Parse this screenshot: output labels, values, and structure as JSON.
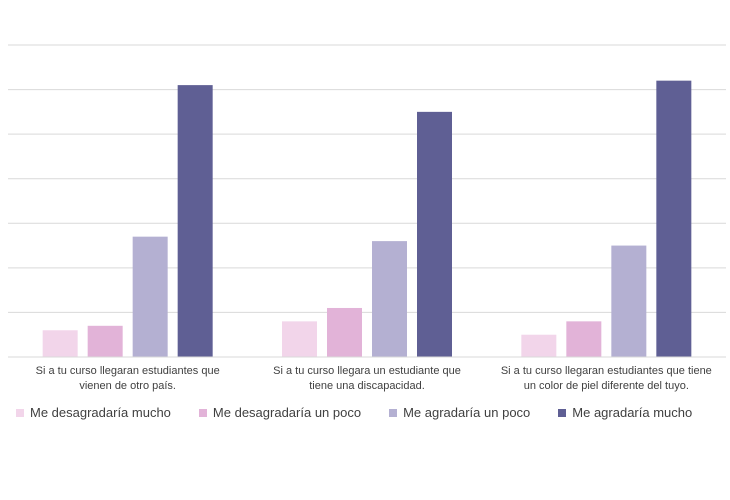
{
  "chart_data": {
    "type": "bar",
    "categories": [
      "Si a tu curso llegaran estudiantes que vienen de otro país.",
      "Si a tu curso llegara un estudiante que tiene una discapacidad.",
      "Si a tu curso llegaran estudiantes que tiene un color de piel diferente del tuyo."
    ],
    "category_lines": [
      [
        "Si a tu curso llegaran estudiantes que",
        "vienen de otro país."
      ],
      [
        "Si a tu curso llegara un estudiante que",
        "tiene una discapacidad."
      ],
      [
        "Si a tu curso llegaran estudiantes que tiene",
        "un color de piel diferente del tuyo."
      ]
    ],
    "series": [
      {
        "name": "Me desagradaría mucho",
        "color": "#f2d5ea",
        "values": [
          6,
          8,
          5
        ]
      },
      {
        "name": "Me desagradaría un poco",
        "color": "#e2b3d8",
        "values": [
          7,
          11,
          8
        ]
      },
      {
        "name": "Me agradaría un poco",
        "color": "#b4b0d2",
        "values": [
          27,
          26,
          25
        ]
      },
      {
        "name": "Me agradaría mucho",
        "color": "#5f5f94",
        "values": [
          61,
          55,
          62
        ]
      }
    ],
    "ylim": [
      0,
      70
    ],
    "grid": true,
    "legend_position": "bottom-left"
  }
}
